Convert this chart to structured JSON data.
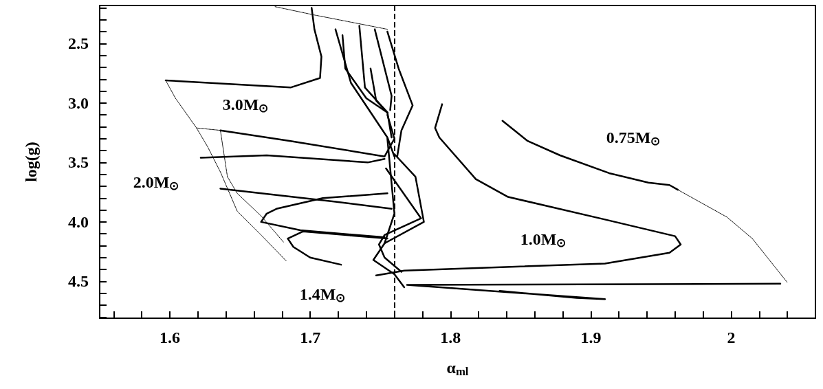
{
  "chart_data": {
    "type": "line",
    "xlabel": "α$_{ml}$",
    "ylabel": "log(g)",
    "marker": "none",
    "xlim": [
      1.55,
      2.06
    ],
    "ylim": [
      4.81,
      2.18
    ],
    "xticks": [
      {
        "value": 1.56,
        "label": null
      },
      {
        "value": 1.58,
        "label": null
      },
      1.6,
      {
        "value": 1.62,
        "label": null
      },
      {
        "value": 1.64,
        "label": null
      },
      {
        "value": 1.66,
        "label": null
      },
      {
        "value": 1.68,
        "label": null
      },
      1.7,
      {
        "value": 1.72,
        "label": null
      },
      {
        "value": 1.74,
        "label": null
      },
      {
        "value": 1.76,
        "label": null
      },
      {
        "value": 1.78,
        "label": null
      },
      1.8,
      {
        "value": 1.82,
        "label": null
      },
      {
        "value": 1.84,
        "label": null
      },
      {
        "value": 1.86,
        "label": null
      },
      {
        "value": 1.88,
        "label": null
      },
      1.9,
      {
        "value": 1.92,
        "label": null
      },
      {
        "value": 1.94,
        "label": null
      },
      {
        "value": 1.96,
        "label": null
      },
      {
        "value": 1.98,
        "label": null
      },
      2,
      {
        "value": 2.02,
        "label": null
      },
      {
        "value": 2.04,
        "label": null
      }
    ],
    "yticks": [
      {
        "value": 2.2,
        "label": null
      },
      {
        "value": 2.3,
        "label": null
      },
      {
        "value": 2.4,
        "label": null
      },
      2.5,
      {
        "value": 2.6,
        "label": null
      },
      {
        "value": 2.7,
        "label": null
      },
      {
        "value": 2.8,
        "label": null
      },
      {
        "value": 2.9,
        "label": null
      },
      {
        "value": 3,
        "label": "3.0"
      },
      {
        "value": 3.1,
        "label": null
      },
      {
        "value": 3.2,
        "label": null
      },
      {
        "value": 3.3,
        "label": null
      },
      {
        "value": 3.4,
        "label": null
      },
      3.5,
      {
        "value": 3.6,
        "label": null
      },
      {
        "value": 3.7,
        "label": null
      },
      {
        "value": 3.8,
        "label": null
      },
      {
        "value": 3.9,
        "label": null
      },
      {
        "value": 4,
        "label": "4.0"
      },
      {
        "value": 4.1,
        "label": null
      },
      {
        "value": 4.2,
        "label": null
      },
      {
        "value": 4.3,
        "label": null
      },
      {
        "value": 4.4,
        "label": null
      },
      4.5,
      {
        "value": 4.6,
        "label": null
      },
      {
        "value": 4.7,
        "label": null
      },
      {
        "value": 4.8,
        "label": null
      }
    ],
    "ref_lines": [
      {
        "axis": "x",
        "value": 1.76,
        "line_style": "dashed",
        "color": "#000000"
      }
    ],
    "annotations": [
      "3.0M$_{⊙}$",
      "2.0M$_{⊙}$",
      "1.4M$_{⊙}$",
      "1.0M$_{⊙}$",
      "0.75M$_{⊙}$"
    ],
    "series": [
      {
        "color": "#000000",
        "line_style": "solid",
        "x": [
          1.597,
          1.686,
          1.707,
          1.708,
          1.703,
          1.701
        ],
        "values": [
          2.81,
          2.87,
          2.79,
          2.61,
          2.38,
          2.2
        ]
      },
      {
        "color": "#000000",
        "line_style": "solid",
        "x": [
          1.636,
          1.686,
          1.753,
          1.76,
          1.755
        ],
        "values": [
          3.23,
          3.32,
          3.45,
          3.3,
          3.1
        ]
      },
      {
        "color": "#000000",
        "line_style": "solid",
        "x": [
          1.622,
          1.669,
          1.741,
          1.753
        ],
        "values": [
          3.46,
          3.44,
          3.5,
          3.47
        ]
      },
      {
        "color": "#000000",
        "line_style": "solid",
        "x": [
          1.636,
          1.718,
          1.758
        ],
        "values": [
          3.72,
          3.83,
          3.89
        ]
      },
      {
        "color": "#000000",
        "line_style": "solid",
        "x": [
          1.755,
          1.709,
          1.676,
          1.669,
          1.665,
          1.693,
          1.753
        ],
        "values": [
          3.76,
          3.8,
          3.89,
          3.93,
          4.0,
          4.07,
          4.13
        ]
      },
      {
        "color": "#000000",
        "line_style": "solid",
        "x": [
          1.755,
          1.695,
          1.684,
          1.688,
          1.7,
          1.722
        ],
        "values": [
          4.14,
          4.08,
          4.14,
          4.21,
          4.3,
          4.36
        ]
      },
      {
        "color": "#000000",
        "line_style": "solid",
        "x": [
          1.718,
          1.729,
          1.755,
          1.76
        ],
        "values": [
          2.38,
          2.83,
          3.29,
          3.45
        ]
      },
      {
        "color": "#000000",
        "line_style": "solid",
        "x": [
          1.723,
          1.725,
          1.74,
          1.755,
          1.758
        ],
        "values": [
          2.43,
          2.71,
          2.96,
          3.08,
          3.29
        ]
      },
      {
        "color": "#000000",
        "line_style": "solid",
        "x": [
          1.735,
          1.739,
          1.755
        ],
        "values": [
          2.35,
          2.87,
          3.08
        ]
      },
      {
        "color": "#000000",
        "line_style": "solid",
        "x": [
          1.746,
          1.758,
          1.757
        ],
        "values": [
          2.38,
          2.94,
          3.06
        ]
      },
      {
        "color": "#000000",
        "line_style": "solid",
        "x": [
          1.755,
          1.763,
          1.773,
          1.765,
          1.762
        ],
        "values": [
          2.4,
          2.71,
          3.02,
          3.23,
          3.45
        ]
      },
      {
        "color": "#000000",
        "line_style": "solid",
        "x": [
          1.743,
          1.747,
          1.755
        ],
        "values": [
          2.71,
          2.98,
          3.08
        ]
      },
      {
        "color": "#000000",
        "line_style": "solid",
        "x": [
          1.76,
          1.775,
          1.781,
          1.753,
          1.745,
          1.76,
          1.767
        ],
        "values": [
          3.43,
          3.62,
          4.0,
          4.18,
          4.32,
          4.44,
          4.55
        ]
      },
      {
        "color": "#000000",
        "line_style": "solid",
        "x": [
          1.754,
          1.779,
          1.753,
          1.749,
          1.753,
          1.765
        ],
        "values": [
          3.55,
          3.97,
          4.11,
          4.19,
          4.3,
          4.42
        ]
      },
      {
        "color": "#000000",
        "line_style": "solid",
        "x": [
          1.755,
          1.76,
          1.753
        ],
        "values": [
          3.3,
          3.93,
          4.18
        ]
      },
      {
        "color": "#000000",
        "line_style": "solid",
        "x": [
          1.794,
          1.789,
          1.792,
          1.818,
          1.841,
          1.91,
          1.96,
          1.964,
          1.956,
          1.91,
          1.767,
          1.747
        ],
        "values": [
          3.01,
          3.21,
          3.29,
          3.64,
          3.79,
          3.98,
          4.12,
          4.19,
          4.26,
          4.35,
          4.41,
          4.45
        ]
      },
      {
        "color": "#000000",
        "line_style": "solid",
        "x": [
          1.837,
          1.855,
          1.878,
          1.913,
          1.941,
          1.956,
          1.962
        ],
        "values": [
          3.15,
          3.32,
          3.44,
          3.59,
          3.67,
          3.69,
          3.73
        ]
      },
      {
        "color": "#000000",
        "line_style": "solid",
        "x": [
          2.035,
          1.769,
          1.91,
          1.89,
          1.835
        ],
        "values": [
          4.52,
          4.53,
          4.65,
          4.64,
          4.58
        ]
      },
      {
        "color": "#000000",
        "line_style": "dotted",
        "x": [
          1.675,
          1.703,
          1.755
        ],
        "values": [
          2.19,
          2.26,
          2.38
        ]
      },
      {
        "color": "#000000",
        "line_style": "dotted",
        "x": [
          1.597,
          1.604,
          1.619,
          1.627,
          1.636,
          1.648,
          1.665,
          1.683
        ],
        "values": [
          2.81,
          2.96,
          3.21,
          3.37,
          3.58,
          3.91,
          4.11,
          4.33
        ]
      },
      {
        "color": "#000000",
        "line_style": "dotted",
        "x": [
          1.619,
          1.636,
          1.641,
          1.648,
          1.665,
          1.681
        ],
        "values": [
          3.21,
          3.23,
          3.62,
          3.76,
          3.95,
          4.17
        ]
      },
      {
        "color": "#000000",
        "line_style": "dotted",
        "x": [
          1.962,
          1.997,
          2.015,
          2.04
        ],
        "values": [
          3.73,
          3.96,
          4.14,
          4.51
        ]
      }
    ]
  }
}
